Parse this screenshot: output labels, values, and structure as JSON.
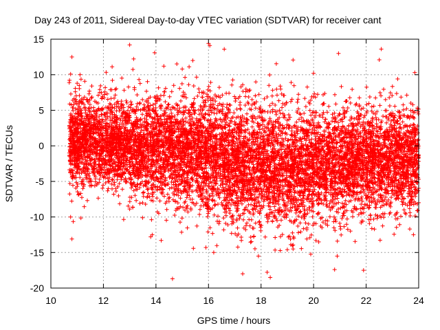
{
  "chart_data": {
    "type": "scatter",
    "title": "Day 243 of 2011, Sidereal Day-to-day VTEC variation (SDTVAR) for receiver cant",
    "xlabel": "GPS time / hours",
    "ylabel": "SDTVAR / TECUs",
    "xlim": [
      10,
      24
    ],
    "ylim": [
      -20,
      15
    ],
    "xticks": [
      "10",
      "12",
      "14",
      "16",
      "18",
      "20",
      "22",
      "24"
    ],
    "yticks": [
      "15",
      "10",
      "5",
      "0",
      "-5",
      "-10",
      "-15",
      "-20"
    ],
    "grid": true,
    "marker": "+",
    "color": "#ff0000",
    "x_range_of_points": [
      10.7,
      24.0
    ],
    "density_profile": {
      "hours": [
        10.7,
        12,
        14,
        16,
        17,
        18,
        19,
        20,
        21,
        22,
        23,
        24
      ],
      "center": [
        0.5,
        0.5,
        -0.5,
        -1.5,
        -2.5,
        -3.0,
        -3.0,
        -2.5,
        -2.5,
        -2.0,
        -2.0,
        -2.0
      ],
      "spread": [
        3.2,
        3.2,
        3.6,
        4.0,
        4.2,
        4.2,
        4.0,
        3.8,
        3.7,
        3.7,
        3.6,
        3.4
      ]
    },
    "outliers": [
      {
        "x": 10.8,
        "y": 12.5
      },
      {
        "x": 10.75,
        "y": 10.1
      },
      {
        "x": 10.7,
        "y": 8.9
      },
      {
        "x": 11.0,
        "y": 8.8
      },
      {
        "x": 10.8,
        "y": -13.1
      },
      {
        "x": 10.75,
        "y": -10.0
      },
      {
        "x": 13.0,
        "y": 14.2
      },
      {
        "x": 13.95,
        "y": 13.1
      },
      {
        "x": 14.3,
        "y": 11.2
      },
      {
        "x": 15.0,
        "y": 10.8
      },
      {
        "x": 15.4,
        "y": 12.0
      },
      {
        "x": 16.0,
        "y": 14.4
      },
      {
        "x": 16.05,
        "y": 14.1
      },
      {
        "x": 16.6,
        "y": 13.6
      },
      {
        "x": 17.3,
        "y": 8.6
      },
      {
        "x": 17.8,
        "y": 9.0
      },
      {
        "x": 18.3,
        "y": 8.5
      },
      {
        "x": 20.0,
        "y": 10.2
      },
      {
        "x": 20.95,
        "y": 13.0
      },
      {
        "x": 22.5,
        "y": 12.1
      },
      {
        "x": 23.2,
        "y": 9.4
      },
      {
        "x": 23.85,
        "y": 10.3
      },
      {
        "x": 14.2,
        "y": -13.3
      },
      {
        "x": 17.3,
        "y": -18.0
      },
      {
        "x": 18.35,
        "y": -18.5
      },
      {
        "x": 20.8,
        "y": -17.4
      },
      {
        "x": 21.9,
        "y": -17.5
      },
      {
        "x": 20.9,
        "y": -15.5
      },
      {
        "x": 16.2,
        "y": -15.0
      },
      {
        "x": 17.9,
        "y": -15.5
      },
      {
        "x": 13.8,
        "y": -12.8
      },
      {
        "x": 23.8,
        "y": -12.5
      },
      {
        "x": 24.0,
        "y": -8.0
      },
      {
        "x": 15.9,
        "y": -14.3
      },
      {
        "x": 19.0,
        "y": -14.6
      }
    ]
  }
}
